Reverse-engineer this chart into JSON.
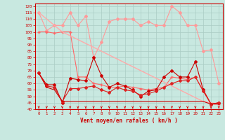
{
  "x": [
    0,
    1,
    2,
    3,
    4,
    5,
    6,
    7,
    8,
    9,
    10,
    11,
    12,
    13,
    14,
    15,
    16,
    17,
    18,
    19,
    20,
    21,
    22,
    23
  ],
  "series": [
    {
      "name": "rafales_high",
      "color": "#ff9999",
      "linewidth": 0.8,
      "marker": "D",
      "markersize": 2.0,
      "values": [
        115,
        101,
        105,
        105,
        115,
        105,
        112,
        80,
        92,
        108,
        110,
        110,
        110,
        105,
        108,
        105,
        105,
        120,
        115,
        105,
        105,
        85,
        86,
        60
      ]
    },
    {
      "name": "rafales_mid",
      "color": "#ff6666",
      "linewidth": 0.8,
      "marker": "+",
      "markersize": 3.5,
      "values": [
        100,
        100,
        99,
        100,
        100,
        65,
        65,
        60,
        59,
        57,
        57,
        58,
        57,
        56,
        55,
        56,
        57,
        65,
        64,
        63,
        65,
        55,
        44,
        44
      ]
    },
    {
      "name": "trend_line",
      "color": "#ffaaaa",
      "linewidth": 1.0,
      "marker": null,
      "markersize": 0,
      "values": [
        115,
        110,
        105,
        100,
        97,
        94,
        91,
        88,
        85,
        82,
        79,
        76,
        73,
        70,
        67,
        64,
        61,
        58,
        55,
        52,
        49,
        46,
        45,
        44
      ]
    },
    {
      "name": "vent_moyen_high",
      "color": "#cc0000",
      "linewidth": 0.8,
      "marker": "D",
      "markersize": 2.0,
      "values": [
        68,
        59,
        59,
        45,
        64,
        63,
        62,
        80,
        66,
        57,
        60,
        58,
        55,
        50,
        54,
        55,
        65,
        70,
        65,
        65,
        77,
        55,
        44,
        45
      ]
    },
    {
      "name": "vent_moyen_low",
      "color": "#dd2222",
      "linewidth": 0.8,
      "marker": "D",
      "markersize": 2.0,
      "values": [
        68,
        58,
        57,
        46,
        56,
        56,
        57,
        58,
        55,
        53,
        57,
        55,
        54,
        51,
        52,
        54,
        57,
        60,
        62,
        62,
        65,
        54,
        44,
        45
      ]
    },
    {
      "name": "base_line",
      "color": "#cc0000",
      "linewidth": 0.8,
      "marker": null,
      "markersize": 0,
      "values": [
        68,
        57,
        55,
        46,
        46,
        46,
        46,
        46,
        46,
        46,
        46,
        46,
        46,
        46,
        46,
        46,
        46,
        46,
        46,
        46,
        46,
        46,
        44,
        44
      ]
    }
  ],
  "xlabel": "Vent moyen/en rafales ( km/h )",
  "xlim": [
    -0.5,
    23.5
  ],
  "ylim": [
    40,
    122
  ],
  "yticks": [
    40,
    45,
    50,
    55,
    60,
    65,
    70,
    75,
    80,
    85,
    90,
    95,
    100,
    105,
    110,
    115,
    120
  ],
  "xticks": [
    0,
    1,
    2,
    3,
    4,
    5,
    6,
    7,
    8,
    9,
    10,
    11,
    12,
    13,
    14,
    15,
    16,
    17,
    18,
    19,
    20,
    21,
    22,
    23
  ],
  "bg_color": "#c8e8e0",
  "grid_color": "#aaccc4",
  "text_color": "#cc0000",
  "arrow_color": "#cc0000"
}
